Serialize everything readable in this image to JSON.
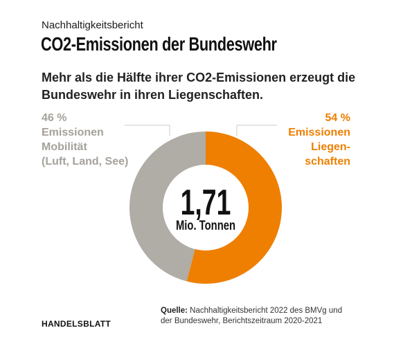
{
  "kicker": "Nachhaltigkeitsbericht",
  "title": "CO2-Emissionen der Bundeswehr",
  "subtitle": "Mehr als die Hälfte ihrer CO2-Emissionen erzeugt die Bundeswehr in ihren Liegenschaften.",
  "chart_data": {
    "type": "pie",
    "variant": "donut",
    "slices": [
      {
        "percent_label": "46 %",
        "label_lines": [
          "Emissionen",
          "Mobilität",
          "(Luft, Land, See)"
        ],
        "value": 46,
        "color": "#b0aca6",
        "label_color": "#a5a19b"
      },
      {
        "percent_label": "54 %",
        "label_lines": [
          "Emissionen",
          "Liegen-",
          "schaften"
        ],
        "value": 54,
        "color": "#ee7f00",
        "label_color": "#ee7f00"
      }
    ],
    "center_value": "1,71",
    "center_unit": "Mio. Tonnen"
  },
  "footer": {
    "brand": "HANDELSBLATT",
    "source_label": "Quelle:",
    "source_line1": " Nachhaltigkeitsbericht 2022 des BMVg und",
    "source_line2": "der Bundeswehr,  Berichtszeitraum 2020-2021"
  }
}
